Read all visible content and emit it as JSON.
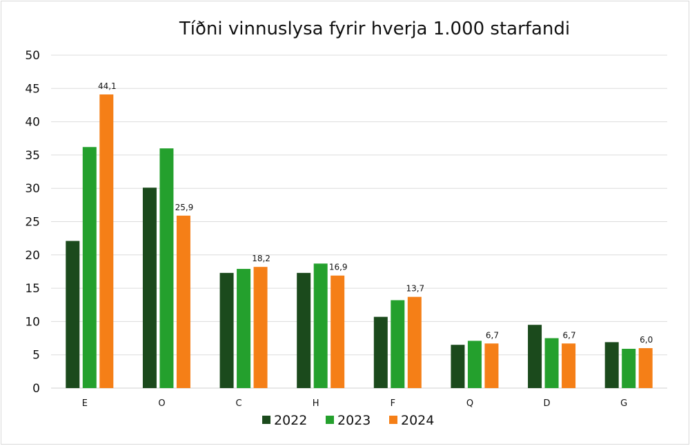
{
  "chart_data": {
    "type": "bar",
    "title": "Tíðni vinnuslysa fyrir hverja 1.000 starfandi",
    "xlabel": "",
    "ylabel": "",
    "ylim": [
      0,
      50
    ],
    "y_ticks": [
      0,
      5,
      10,
      15,
      20,
      25,
      30,
      35,
      40,
      45,
      50
    ],
    "grid": true,
    "legend_position": "bottom",
    "categories": [
      "E",
      "O",
      "C",
      "H",
      "F",
      "Q",
      "D",
      "G"
    ],
    "series": [
      {
        "name": "2022",
        "color": "#1b4a1c",
        "values": [
          22.1,
          30.1,
          17.3,
          17.3,
          10.7,
          6.5,
          9.5,
          6.9
        ]
      },
      {
        "name": "2023",
        "color": "#24a02d",
        "values": [
          36.2,
          36.0,
          17.9,
          18.7,
          13.2,
          7.1,
          7.5,
          5.9
        ]
      },
      {
        "name": "2024",
        "color": "#f57f17",
        "values": [
          44.1,
          25.9,
          18.2,
          16.9,
          13.7,
          6.7,
          6.7,
          6.0
        ]
      }
    ],
    "data_labels": {
      "series": "2024",
      "values": [
        "44,1",
        "25,9",
        "18,2",
        "16,9",
        "13,7",
        "6,7",
        "6,7",
        "6,0"
      ]
    }
  }
}
